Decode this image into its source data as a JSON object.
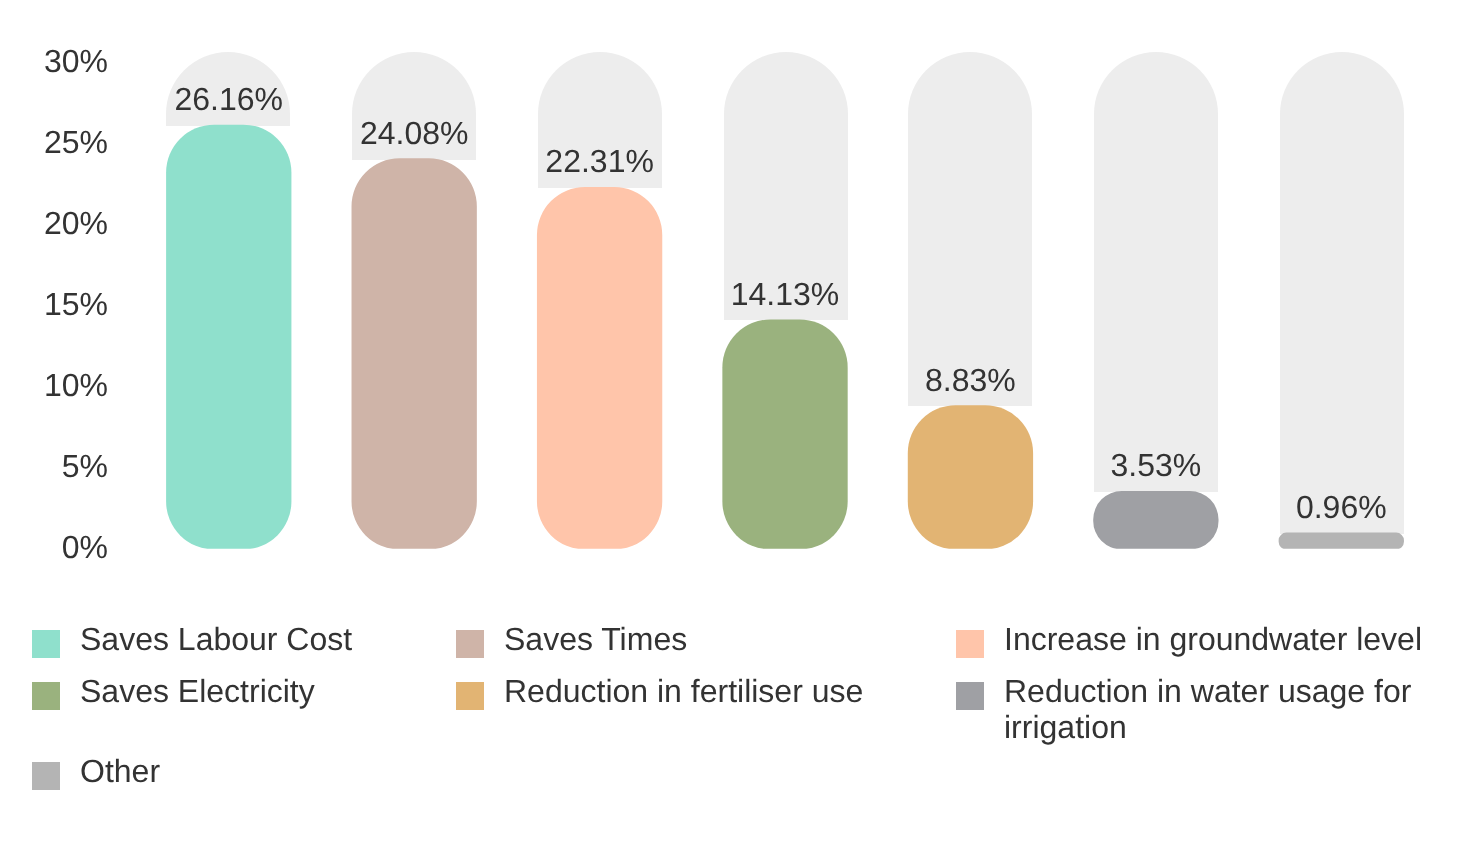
{
  "chart_data": {
    "type": "bar",
    "categories": [
      null,
      null,
      null,
      null,
      null,
      null,
      null
    ],
    "stacked": true,
    "series": [
      {
        "name": "Saves Labour Cost",
        "color": "#8fe0cc",
        "values": [
          26.16,
          null,
          null,
          null,
          null,
          null,
          null
        ],
        "value_labels": [
          "26.16%",
          null,
          null,
          null,
          null,
          null,
          null
        ]
      },
      {
        "name": "Saves Times",
        "color": "#cfb4a8",
        "values": [
          null,
          24.08,
          null,
          null,
          null,
          null,
          null
        ],
        "value_labels": [
          null,
          "24.08%",
          null,
          null,
          null,
          null,
          null
        ]
      },
      {
        "name": "Increase in groundwater level",
        "color": "#ffc5aa",
        "values": [
          null,
          null,
          22.31,
          null,
          null,
          null,
          null
        ],
        "value_labels": [
          null,
          null,
          "22.31%",
          null,
          null,
          null,
          null
        ]
      },
      {
        "name": "Saves Electricity",
        "color": "#9ab27e",
        "values": [
          null,
          null,
          null,
          14.13,
          null,
          null,
          null
        ],
        "value_labels": [
          null,
          null,
          null,
          "14.13%",
          null,
          null,
          null
        ]
      },
      {
        "name": "Reduction in fertiliser use",
        "color": "#e2b473",
        "values": [
          null,
          null,
          null,
          null,
          8.83,
          null,
          null
        ],
        "value_labels": [
          null,
          null,
          null,
          null,
          "8.83%",
          null,
          null
        ]
      },
      {
        "name": "Reduction in water usage for irrigation",
        "color": "#9fa0a4",
        "values": [
          null,
          null,
          null,
          null,
          null,
          3.53,
          null
        ],
        "value_labels": [
          null,
          null,
          null,
          null,
          null,
          "3.53%",
          null
        ]
      },
      {
        "name": "Other",
        "color": "#b4b4b4",
        "values": [
          null,
          null,
          null,
          null,
          null,
          null,
          0.96
        ],
        "value_labels": [
          null,
          null,
          null,
          null,
          null,
          null,
          "0.96%"
        ]
      }
    ],
    "ylim": [
      0,
      30
    ],
    "yticks": [
      {
        "value": 0,
        "label": "0%"
      },
      {
        "value": 5,
        "label": "5%"
      },
      {
        "value": 10,
        "label": "10%"
      },
      {
        "value": 15,
        "label": "15%"
      },
      {
        "value": 20,
        "label": "20%"
      },
      {
        "value": 25,
        "label": "25%"
      },
      {
        "value": 30,
        "label": "30%"
      }
    ],
    "tick_labels": "y",
    "grid": false,
    "legend": "bottom"
  }
}
